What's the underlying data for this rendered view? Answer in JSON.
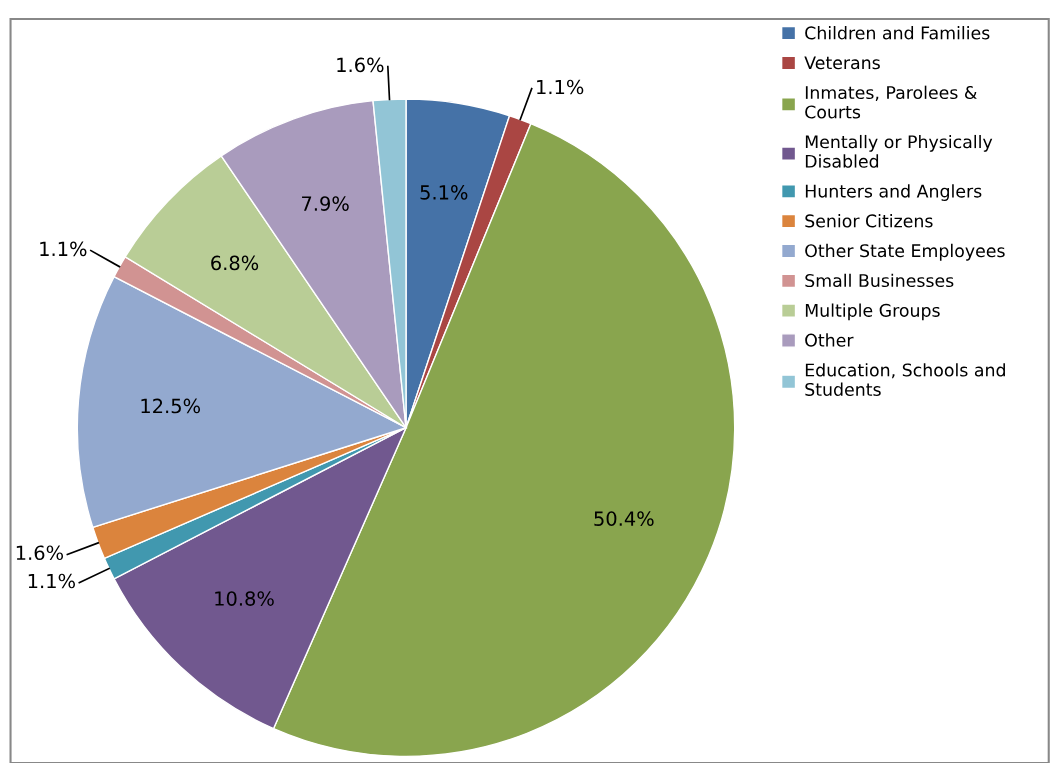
{
  "chart_data": {
    "type": "pie",
    "categories": [
      "Children and Families",
      "Veterans",
      "Inmates, Parolees & Courts",
      "Mentally or Physically Disabled",
      "Hunters and Anglers",
      "Senior Citizens",
      "Other State Employees",
      "Small Businesses",
      "Multiple Groups",
      "Other",
      "Education, Schools and Students"
    ],
    "values": [
      5.1,
      1.1,
      50.4,
      10.8,
      1.1,
      1.6,
      12.5,
      1.1,
      6.8,
      7.9,
      1.6
    ],
    "colors": [
      "#4572a7",
      "#aa4643",
      "#89a54e",
      "#71588f",
      "#4198af",
      "#db843d",
      "#93a9cf",
      "#d19392",
      "#b9cd96",
      "#a99bbd",
      "#92c5d6"
    ],
    "value_labels": [
      "5.1%",
      "1.1%",
      "50.4%",
      "10.8%",
      "1.1%",
      "1.6%",
      "12.5%",
      "1.1%",
      "6.8%",
      "7.9%",
      "1.6%"
    ],
    "legend": "right"
  }
}
